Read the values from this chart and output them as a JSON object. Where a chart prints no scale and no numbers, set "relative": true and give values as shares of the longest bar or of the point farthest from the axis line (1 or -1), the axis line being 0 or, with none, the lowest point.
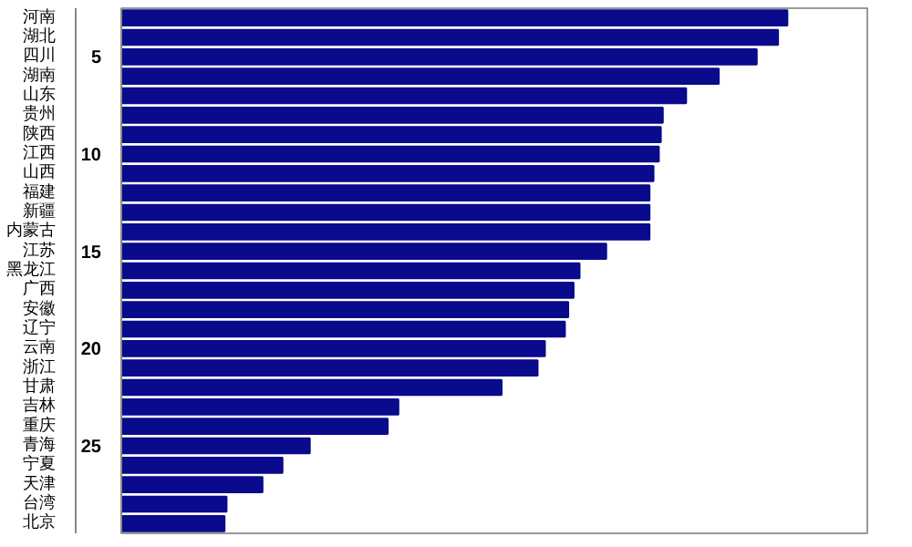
{
  "chart_data": {
    "type": "bar",
    "orientation": "horizontal",
    "relative": true,
    "categories": [
      null,
      null,
      "河南",
      "湖北",
      "四川",
      "湖南",
      "山东",
      "贵州",
      "陕西",
      "江西",
      "山西",
      "福建",
      "新疆",
      "内蒙古",
      "江苏",
      "黑龙江",
      "广西",
      "安徽",
      "辽宁",
      "云南",
      "浙江",
      "甘肃",
      "吉林",
      "重庆",
      "青海",
      "宁夏",
      "天津",
      "台湾",
      "北京"
    ],
    "values": [
      null,
      null,
      1.0,
      0.986,
      0.954,
      0.897,
      0.848,
      0.813,
      0.81,
      0.807,
      0.799,
      0.793,
      0.793,
      0.793,
      0.728,
      0.688,
      0.679,
      0.671,
      0.666,
      0.636,
      0.625,
      0.571,
      0.416,
      0.4,
      0.283,
      0.242,
      0.212,
      0.158,
      0.155
    ],
    "color": "#0a0a8c",
    "annotations": [
      "5",
      "10",
      "15",
      "20",
      "25"
    ]
  }
}
